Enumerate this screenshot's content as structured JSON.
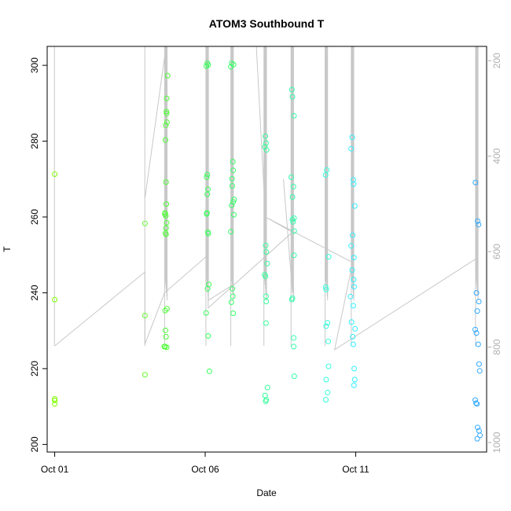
{
  "chart_data": {
    "type": "scatter",
    "title": "ATOM3 Southbound T",
    "xlabel": "Date",
    "ylabel": "T",
    "x_tick_labels": [
      "Oct 01",
      "Oct 06",
      "Oct 11"
    ],
    "x_tick_days": [
      1,
      6,
      11
    ],
    "xlim_days": [
      0.75,
      15.35
    ],
    "ylim": [
      198,
      305
    ],
    "y_ticks": [
      200,
      220,
      240,
      260,
      280,
      300
    ],
    "y2_ticks": [
      200,
      400,
      600,
      800,
      1000
    ],
    "y2lim_reversed": [
      1020,
      170
    ],
    "grid": false,
    "legend": "none",
    "colors": {
      "profile_line": "#c8c8c8",
      "axis": "#000000",
      "right_axis": "#b0b0b0"
    },
    "series": [
      {
        "color": "#7fff00",
        "points": [
          [
            1.0,
            271.3
          ],
          [
            1.0,
            238.2
          ],
          [
            1.0,
            212.0
          ],
          [
            1.0,
            211.6
          ],
          [
            1.0,
            210.7
          ]
        ]
      },
      {
        "color": "#66ff33",
        "points": [
          [
            4.0,
            258.3
          ],
          [
            4.0,
            234.0
          ],
          [
            4.0,
            218.4
          ]
        ]
      },
      {
        "color": "#4cff33",
        "points": [
          [
            4.75,
            297.3
          ],
          [
            4.72,
            291.3
          ],
          [
            4.71,
            287.8
          ],
          [
            4.72,
            287.3
          ],
          [
            4.69,
            284.2
          ],
          [
            4.73,
            285.0
          ],
          [
            4.68,
            280.3
          ],
          [
            4.7,
            269.2
          ],
          [
            4.71,
            263.4
          ],
          [
            4.67,
            261.1
          ],
          [
            4.66,
            260.7
          ],
          [
            4.69,
            260.3
          ],
          [
            4.72,
            258.5
          ],
          [
            4.7,
            257.1
          ],
          [
            4.68,
            255.8
          ],
          [
            4.7,
            255.4
          ],
          [
            4.67,
            235.3
          ],
          [
            4.73,
            235.8
          ],
          [
            4.68,
            230.1
          ],
          [
            4.7,
            228.4
          ],
          [
            4.64,
            225.8
          ],
          [
            4.67,
            225.8
          ],
          [
            4.72,
            225.6
          ]
        ]
      },
      {
        "color": "#33ff55",
        "points": [
          [
            6.07,
            300.6
          ],
          [
            6.1,
            300.1
          ],
          [
            6.04,
            299.8
          ],
          [
            6.07,
            271.2
          ],
          [
            6.05,
            270.5
          ],
          [
            6.09,
            267.3
          ],
          [
            6.07,
            266.0
          ],
          [
            6.06,
            261.1
          ],
          [
            6.05,
            260.8
          ],
          [
            6.09,
            256.0
          ],
          [
            6.1,
            255.6
          ],
          [
            6.12,
            242.2
          ],
          [
            6.08,
            241.1
          ],
          [
            6.03,
            234.7
          ],
          [
            6.1,
            228.6
          ],
          [
            6.14,
            219.3
          ]
        ]
      },
      {
        "color": "#33ff66",
        "points": [
          [
            6.88,
            300.6
          ],
          [
            6.94,
            300.2
          ],
          [
            6.85,
            299.6
          ],
          [
            6.92,
            274.6
          ],
          [
            6.93,
            272.3
          ],
          [
            6.89,
            270.1
          ],
          [
            6.9,
            268.2
          ],
          [
            6.96,
            264.6
          ],
          [
            6.93,
            264.0
          ],
          [
            6.88,
            263.1
          ],
          [
            6.95,
            260.6
          ],
          [
            6.85,
            256.1
          ],
          [
            6.9,
            241.1
          ],
          [
            6.92,
            239.1
          ],
          [
            6.87,
            237.5
          ],
          [
            6.93,
            234.6
          ]
        ]
      },
      {
        "color": "#33ff99",
        "points": [
          [
            8.0,
            281.3
          ],
          [
            8.02,
            279.5
          ],
          [
            7.98,
            278.5
          ],
          [
            8.04,
            277.7
          ],
          [
            8.01,
            252.5
          ],
          [
            8.03,
            250.8
          ],
          [
            8.06,
            247.7
          ],
          [
            7.98,
            244.8
          ],
          [
            8.0,
            244.3
          ],
          [
            8.02,
            239.1
          ],
          [
            8.03,
            237.7
          ],
          [
            8.02,
            232.0
          ],
          [
            8.07,
            215.0
          ],
          [
            7.99,
            212.9
          ],
          [
            8.03,
            211.8
          ],
          [
            8.01,
            211.4
          ]
        ]
      },
      {
        "color": "#33ffaa",
        "points": [
          [
            8.88,
            293.6
          ],
          [
            8.9,
            291.7
          ],
          [
            8.95,
            286.7
          ],
          [
            8.86,
            270.5
          ],
          [
            8.93,
            268.0
          ],
          [
            8.9,
            265.3
          ],
          [
            8.95,
            259.7
          ],
          [
            8.9,
            259.3
          ],
          [
            8.92,
            258.7
          ],
          [
            8.96,
            256.3
          ],
          [
            8.95,
            249.9
          ],
          [
            8.9,
            238.6
          ],
          [
            8.88,
            238.2
          ],
          [
            8.94,
            228.1
          ],
          [
            8.94,
            225.8
          ],
          [
            8.96,
            218.0
          ]
        ]
      },
      {
        "color": "#33ffdd",
        "points": [
          [
            10.04,
            272.4
          ],
          [
            10.0,
            271.1
          ],
          [
            10.1,
            249.5
          ],
          [
            10.0,
            241.5
          ],
          [
            10.02,
            240.9
          ],
          [
            10.06,
            232.1
          ],
          [
            10.02,
            231.2
          ],
          [
            10.09,
            227.2
          ],
          [
            10.1,
            220.6
          ],
          [
            10.02,
            217.1
          ],
          [
            10.07,
            213.7
          ],
          [
            10.01,
            211.8
          ]
        ]
      },
      {
        "color": "#33eeff",
        "points": [
          [
            10.88,
            281.0
          ],
          [
            10.85,
            278.0
          ],
          [
            10.92,
            269.8
          ],
          [
            10.93,
            268.7
          ],
          [
            10.97,
            262.9
          ],
          [
            10.9,
            255.2
          ],
          [
            10.85,
            252.4
          ],
          [
            10.94,
            249.3
          ],
          [
            10.88,
            246.0
          ],
          [
            10.93,
            243.5
          ],
          [
            10.95,
            241.6
          ],
          [
            10.83,
            239.0
          ],
          [
            10.92,
            236.6
          ],
          [
            10.86,
            232.3
          ],
          [
            10.98,
            230.5
          ],
          [
            10.9,
            228.4
          ],
          [
            10.92,
            226.4
          ],
          [
            10.95,
            220.0
          ],
          [
            10.97,
            217.1
          ],
          [
            10.94,
            215.6
          ]
        ]
      },
      {
        "color": "#33aaff",
        "points": [
          [
            14.98,
            269.1
          ],
          [
            15.05,
            258.9
          ],
          [
            15.08,
            258.0
          ],
          [
            15.01,
            240.0
          ],
          [
            15.09,
            237.7
          ],
          [
            15.04,
            235.2
          ],
          [
            14.97,
            230.3
          ],
          [
            15.01,
            229.4
          ],
          [
            15.07,
            226.4
          ],
          [
            15.1,
            221.2
          ],
          [
            15.12,
            219.4
          ],
          [
            14.97,
            211.7
          ],
          [
            15.0,
            210.9
          ],
          [
            15.03,
            210.7
          ],
          [
            15.05,
            204.5
          ],
          [
            15.1,
            203.6
          ],
          [
            15.13,
            202.4
          ],
          [
            15.04,
            201.5
          ]
        ]
      }
    ]
  }
}
